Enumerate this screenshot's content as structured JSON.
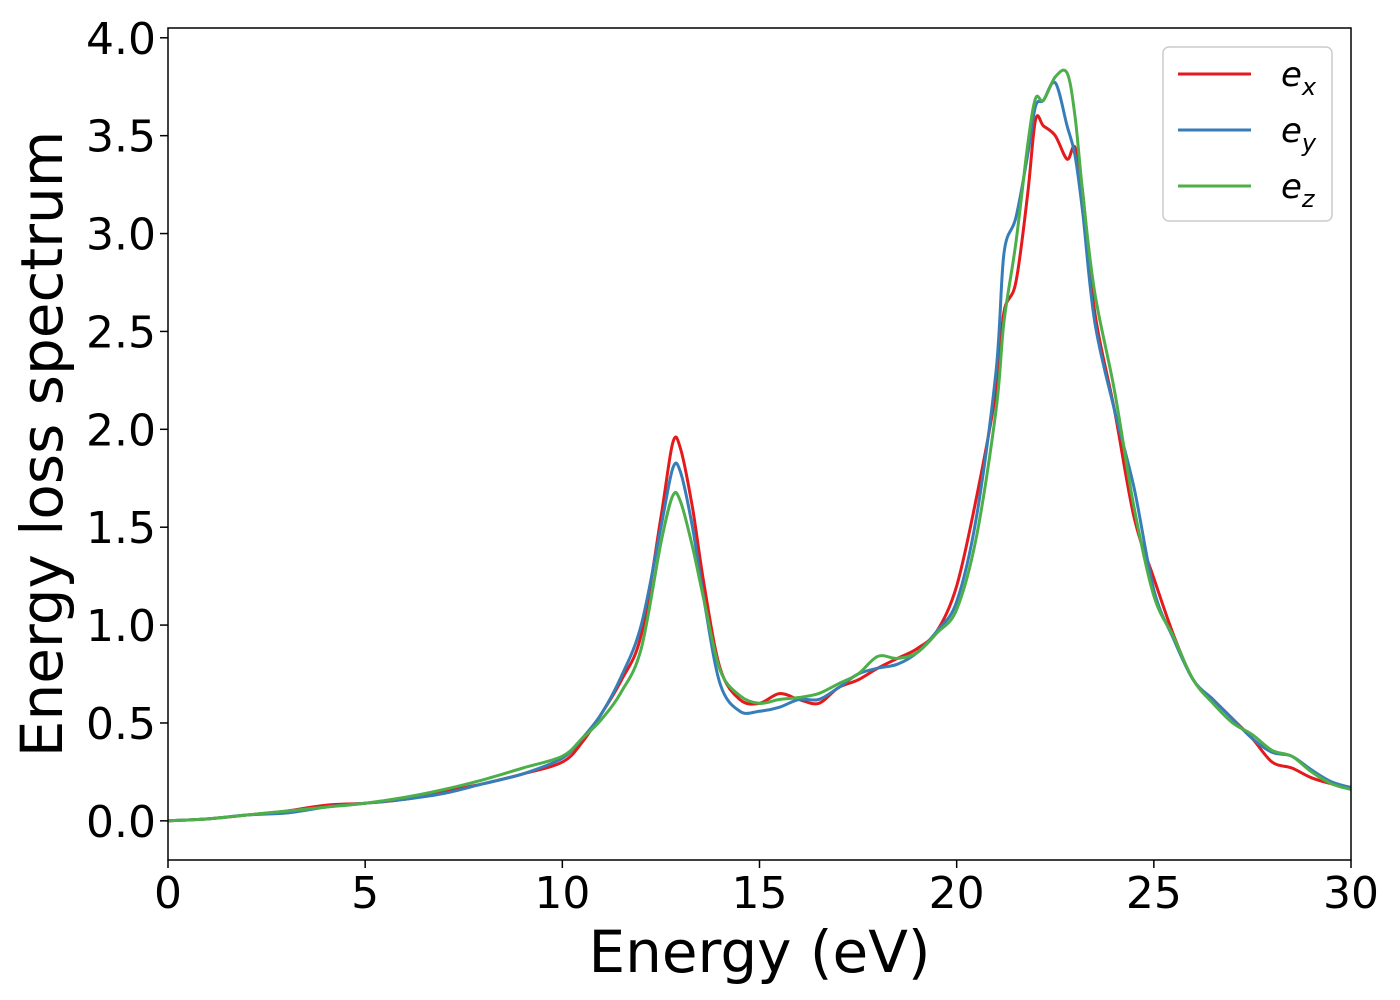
{
  "chart_data": {
    "type": "line",
    "xlabel": "Energy (eV)",
    "ylabel": "Energy loss spectrum",
    "xlim": [
      0,
      30
    ],
    "ylim": [
      -0.2,
      4.05
    ],
    "x_ticks": [
      0,
      5,
      10,
      15,
      20,
      25,
      30
    ],
    "x_tick_labels": [
      "0",
      "5",
      "10",
      "15",
      "20",
      "25",
      "30"
    ],
    "y_ticks": [
      0.0,
      0.5,
      1.0,
      1.5,
      2.0,
      2.5,
      3.0,
      3.5,
      4.0
    ],
    "y_tick_labels": [
      "0.0",
      "0.5",
      "1.0",
      "1.5",
      "2.0",
      "2.5",
      "3.0",
      "3.5",
      "4.0"
    ],
    "grid": false,
    "legend_position": "top-right",
    "series": [
      {
        "name": "e_x",
        "legend_base": "e",
        "legend_sub": "x",
        "color": "#e41a1c",
        "x": [
          0,
          1,
          2,
          3,
          4,
          5,
          6,
          7,
          8,
          9,
          10,
          10.5,
          11,
          11.5,
          12,
          12.5,
          12.8,
          13.0,
          13.3,
          13.6,
          14.0,
          14.5,
          15.0,
          15.5,
          16.0,
          16.5,
          17.0,
          17.5,
          18.0,
          18.5,
          19.0,
          19.5,
          20.0,
          20.5,
          21.0,
          21.2,
          21.5,
          21.8,
          22.0,
          22.2,
          22.5,
          22.8,
          23.0,
          23.2,
          23.5,
          24.0,
          24.5,
          25.0,
          25.5,
          26.0,
          26.5,
          27.0,
          27.5,
          28.0,
          28.5,
          29.0,
          29.5,
          30.0
        ],
        "y": [
          0.0,
          0.01,
          0.03,
          0.05,
          0.08,
          0.09,
          0.11,
          0.15,
          0.19,
          0.24,
          0.3,
          0.4,
          0.55,
          0.72,
          0.95,
          1.55,
          1.93,
          1.9,
          1.6,
          1.2,
          0.78,
          0.62,
          0.6,
          0.65,
          0.62,
          0.6,
          0.68,
          0.72,
          0.78,
          0.83,
          0.88,
          0.97,
          1.2,
          1.65,
          2.2,
          2.6,
          2.75,
          3.2,
          3.58,
          3.55,
          3.5,
          3.38,
          3.44,
          3.2,
          2.6,
          2.1,
          1.55,
          1.24,
          0.95,
          0.72,
          0.62,
          0.52,
          0.42,
          0.3,
          0.27,
          0.22,
          0.19,
          0.17
        ]
      },
      {
        "name": "e_y",
        "legend_base": "e",
        "legend_sub": "y",
        "color": "#377eb8",
        "x": [
          0,
          1,
          2,
          3,
          4,
          5,
          6,
          7,
          8,
          9,
          10,
          10.5,
          11,
          11.5,
          12,
          12.5,
          12.8,
          13.0,
          13.3,
          13.6,
          14.0,
          14.5,
          15.0,
          15.5,
          16.0,
          16.5,
          17.0,
          17.5,
          18.0,
          18.5,
          19.0,
          19.5,
          20.0,
          20.5,
          21.0,
          21.2,
          21.5,
          21.8,
          22.0,
          22.2,
          22.5,
          22.8,
          23.0,
          23.2,
          23.5,
          24.0,
          24.5,
          25.0,
          25.5,
          26.0,
          26.5,
          27.0,
          27.5,
          28.0,
          28.5,
          29.0,
          29.5,
          30.0
        ],
        "y": [
          0.0,
          0.01,
          0.03,
          0.04,
          0.07,
          0.09,
          0.11,
          0.14,
          0.19,
          0.24,
          0.32,
          0.42,
          0.55,
          0.74,
          1.0,
          1.5,
          1.8,
          1.78,
          1.5,
          1.12,
          0.7,
          0.56,
          0.56,
          0.58,
          0.62,
          0.62,
          0.68,
          0.75,
          0.78,
          0.8,
          0.86,
          0.97,
          1.12,
          1.55,
          2.3,
          2.9,
          3.08,
          3.4,
          3.65,
          3.68,
          3.77,
          3.55,
          3.4,
          3.1,
          2.55,
          2.1,
          1.7,
          1.18,
          0.93,
          0.72,
          0.62,
          0.52,
          0.42,
          0.35,
          0.33,
          0.26,
          0.2,
          0.17
        ]
      },
      {
        "name": "e_z",
        "legend_base": "e",
        "legend_sub": "z",
        "color": "#4daf4a",
        "x": [
          0,
          1,
          2,
          3,
          4,
          5,
          6,
          7,
          8,
          9,
          10,
          10.5,
          11,
          11.5,
          12,
          12.5,
          12.8,
          13.0,
          13.3,
          13.6,
          14.0,
          14.5,
          15.0,
          15.5,
          16.0,
          16.5,
          17.0,
          17.5,
          18.0,
          18.5,
          19.0,
          19.5,
          20.0,
          20.5,
          21.0,
          21.2,
          21.5,
          21.8,
          22.0,
          22.2,
          22.5,
          22.8,
          23.0,
          23.2,
          23.5,
          24.0,
          24.5,
          25.0,
          25.5,
          26.0,
          26.5,
          27.0,
          27.5,
          28.0,
          28.5,
          29.0,
          29.5,
          30.0
        ],
        "y": [
          0.0,
          0.01,
          0.03,
          0.05,
          0.07,
          0.09,
          0.12,
          0.16,
          0.21,
          0.27,
          0.33,
          0.42,
          0.52,
          0.66,
          0.88,
          1.42,
          1.66,
          1.63,
          1.4,
          1.12,
          0.77,
          0.64,
          0.6,
          0.62,
          0.63,
          0.65,
          0.7,
          0.75,
          0.84,
          0.83,
          0.86,
          0.96,
          1.08,
          1.45,
          2.1,
          2.55,
          2.95,
          3.45,
          3.69,
          3.68,
          3.8,
          3.82,
          3.6,
          3.2,
          2.7,
          2.2,
          1.6,
          1.15,
          0.94,
          0.72,
          0.6,
          0.5,
          0.44,
          0.36,
          0.33,
          0.25,
          0.19,
          0.16
        ]
      }
    ]
  }
}
